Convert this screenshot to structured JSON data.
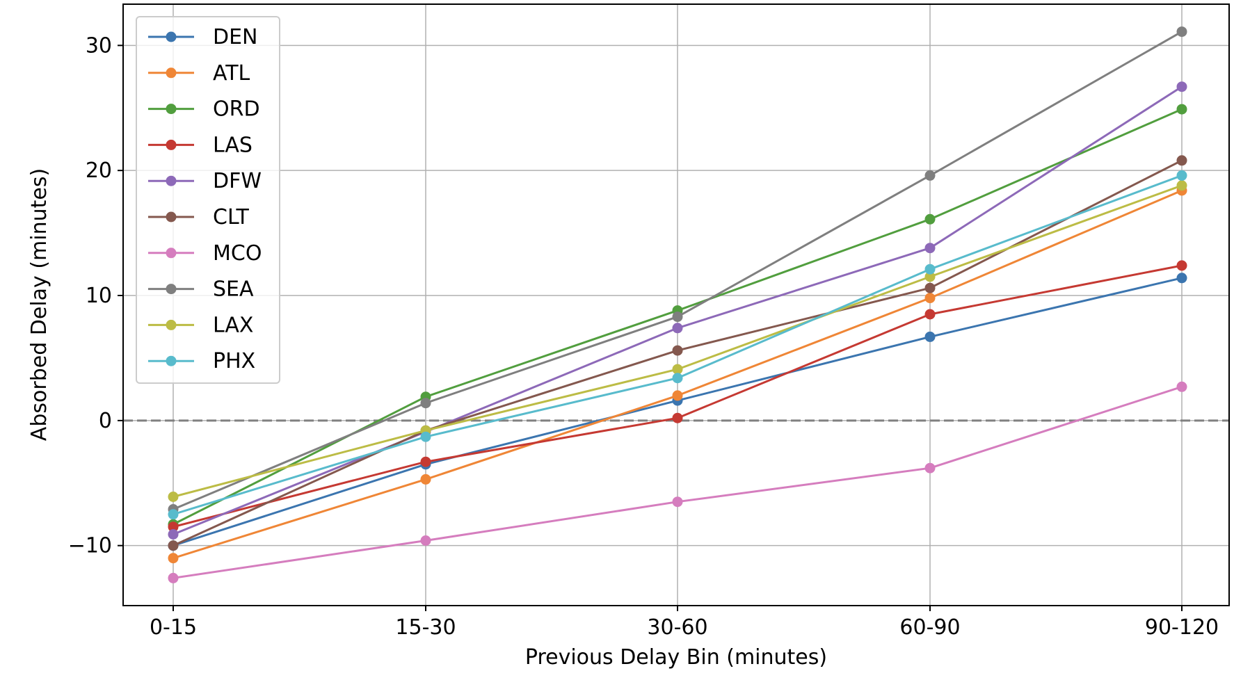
{
  "chart_data": {
    "type": "line",
    "title": "",
    "xlabel": "Previous Delay Bin (minutes)",
    "ylabel": "Absorbed Delay (minutes)",
    "categories": [
      "0-15",
      "15-30",
      "30-60",
      "60-90",
      "90-120"
    ],
    "ylim": [
      -14.8,
      33.3
    ],
    "yticks": [
      -10,
      0,
      10,
      20,
      30
    ],
    "ytick_labels": [
      "−10",
      "0",
      "10",
      "20",
      "30"
    ],
    "grid": true,
    "reference_line": {
      "y": 0,
      "style": "dashed",
      "color": "#808080"
    },
    "legend_position": "upper-left",
    "series": [
      {
        "name": "DEN",
        "color": "#3b75af",
        "values": [
          -10.0,
          -3.5,
          1.6,
          6.7,
          11.4
        ]
      },
      {
        "name": "ATL",
        "color": "#ef8636",
        "values": [
          -11.0,
          -4.7,
          2.0,
          9.8,
          18.4
        ]
      },
      {
        "name": "ORD",
        "color": "#519e3e",
        "values": [
          -8.3,
          1.9,
          8.8,
          16.1,
          24.9
        ]
      },
      {
        "name": "LAS",
        "color": "#c53932",
        "values": [
          -8.5,
          -3.3,
          0.2,
          8.5,
          12.4
        ]
      },
      {
        "name": "DFW",
        "color": "#8d69b8",
        "values": [
          -9.1,
          -0.9,
          7.4,
          13.8,
          26.7
        ]
      },
      {
        "name": "CLT",
        "color": "#84584e",
        "values": [
          -10.0,
          -0.8,
          5.6,
          10.6,
          20.8
        ]
      },
      {
        "name": "MCO",
        "color": "#d57dbe",
        "values": [
          -12.6,
          -9.6,
          -6.5,
          -3.8,
          2.7
        ]
      },
      {
        "name": "SEA",
        "color": "#7f7f7f",
        "values": [
          -7.1,
          1.4,
          8.3,
          19.6,
          31.1
        ]
      },
      {
        "name": "LAX",
        "color": "#bcbc45",
        "values": [
          -6.1,
          -0.8,
          4.1,
          11.5,
          18.8
        ]
      },
      {
        "name": "PHX",
        "color": "#58bbcc",
        "values": [
          -7.5,
          -1.3,
          3.4,
          12.1,
          19.6
        ]
      }
    ]
  }
}
